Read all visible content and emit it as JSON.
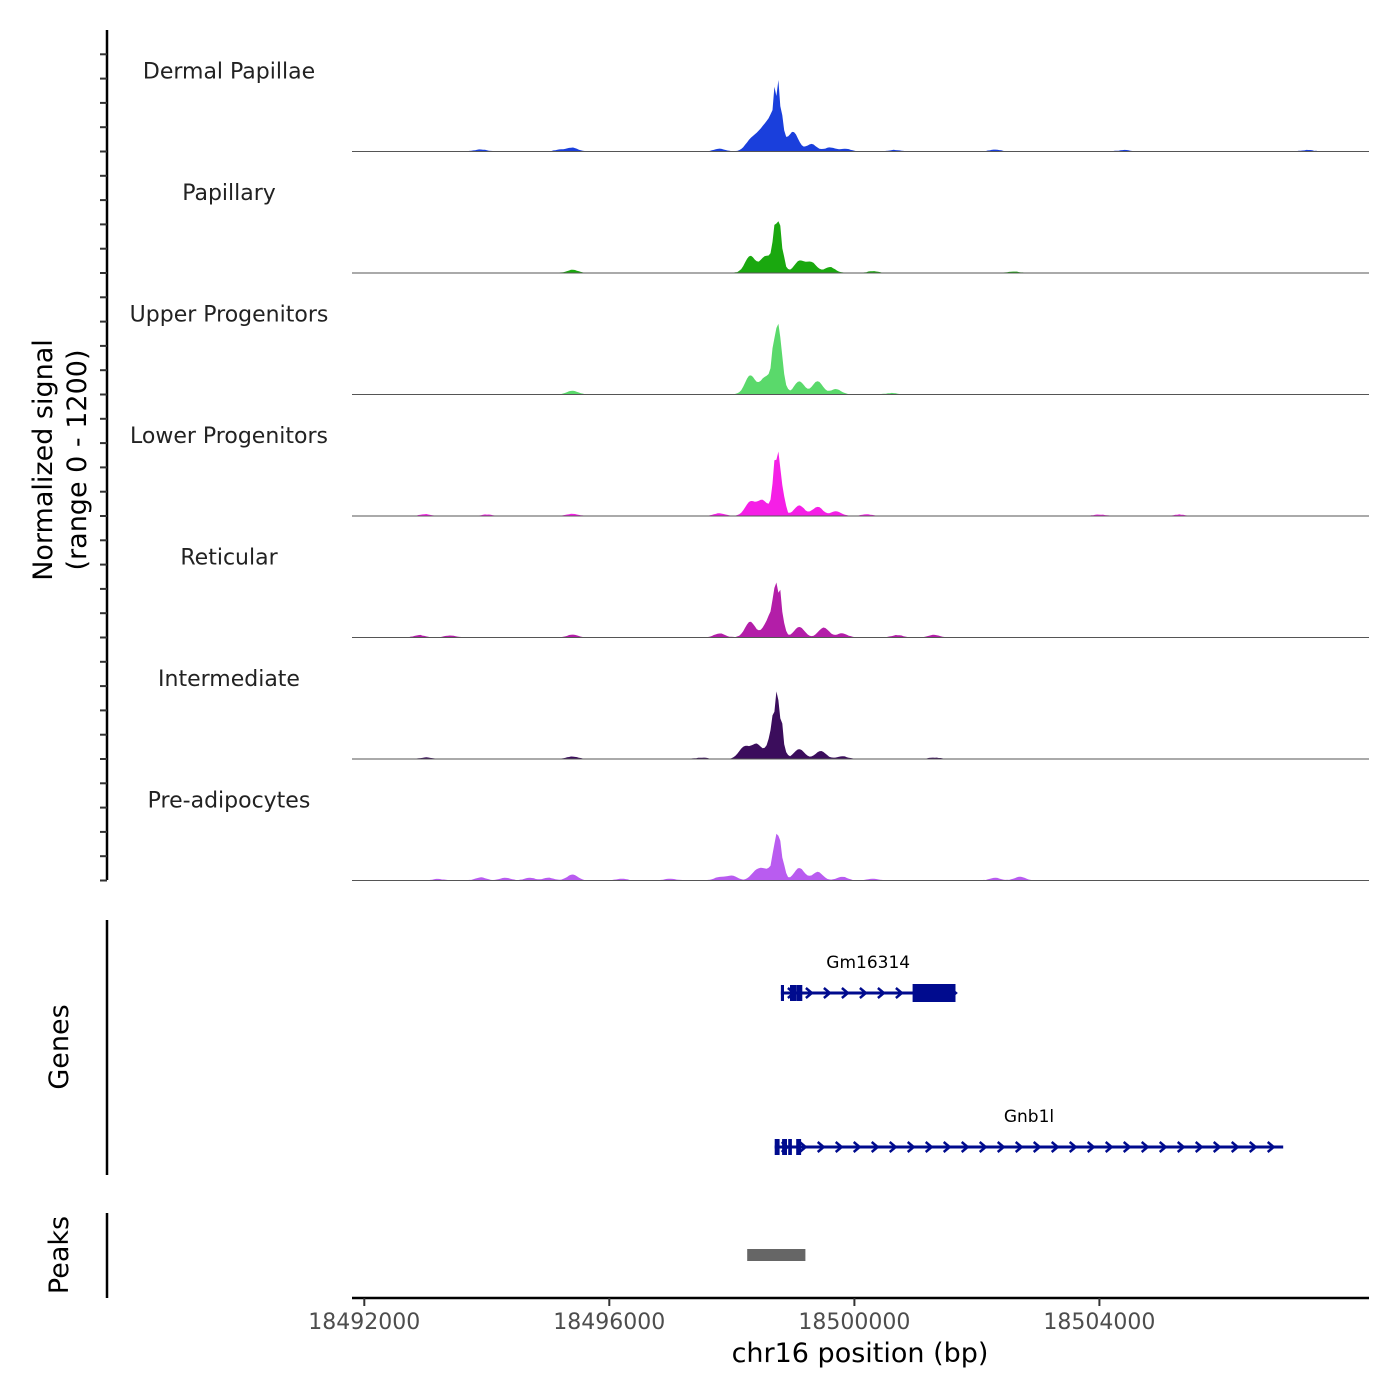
{
  "chart_data": {
    "type": "area",
    "title": "",
    "xlabel": "chr16 position (bp)",
    "ylabel_line1": "Normalized signal",
    "ylabel_line2": "(range 0 - 1200)",
    "yrange": [
      0,
      1200
    ],
    "xlim": [
      18491800,
      18508400
    ],
    "x_ticks": [
      18492000,
      18496000,
      18500000,
      18504000
    ],
    "x_tick_labels": [
      "18492000",
      "18496000",
      "18500000",
      "18504000"
    ],
    "genes_label": "Genes",
    "peaks_label": "Peaks",
    "tracks": [
      {
        "name": "Dermal Papillae",
        "color": "#1a3fdc",
        "peak": 1100,
        "bumps": [
          [
            18493900,
            30
          ],
          [
            18495200,
            25
          ],
          [
            18495400,
            55
          ],
          [
            18497800,
            40
          ],
          [
            18498300,
            150
          ],
          [
            18498450,
            220
          ],
          [
            18498600,
            380
          ],
          [
            18499000,
            300
          ],
          [
            18499300,
            110
          ],
          [
            18499600,
            60
          ],
          [
            18499850,
            40
          ],
          [
            18500650,
            22
          ],
          [
            18502300,
            28
          ],
          [
            18504400,
            20
          ],
          [
            18507400,
            20
          ]
        ]
      },
      {
        "name": "Papillary",
        "color": "#1aa80f",
        "peak": 970,
        "bumps": [
          [
            18495400,
            45
          ],
          [
            18498300,
            260
          ],
          [
            18498550,
            250
          ],
          [
            18499100,
            180
          ],
          [
            18499300,
            160
          ],
          [
            18499600,
            90
          ],
          [
            18500300,
            25
          ],
          [
            18502600,
            20
          ]
        ]
      },
      {
        "name": "Upper Progenitors",
        "color": "#5ad96b",
        "peak": 1500,
        "bumps": [
          [
            18495400,
            55
          ],
          [
            18498300,
            290
          ],
          [
            18498550,
            260
          ],
          [
            18499100,
            200
          ],
          [
            18499400,
            200
          ],
          [
            18499700,
            80
          ],
          [
            18500600,
            20
          ]
        ]
      },
      {
        "name": "Lower Progenitors",
        "color": "#f51fe6",
        "peak": 1200,
        "bumps": [
          [
            18493000,
            25
          ],
          [
            18494000,
            20
          ],
          [
            18495400,
            30
          ],
          [
            18497800,
            40
          ],
          [
            18498300,
            210
          ],
          [
            18498500,
            230
          ],
          [
            18499100,
            160
          ],
          [
            18499400,
            140
          ],
          [
            18499700,
            70
          ],
          [
            18500200,
            25
          ],
          [
            18504000,
            20
          ],
          [
            18505300,
            20
          ]
        ]
      },
      {
        "name": "Reticular",
        "color": "#b31ea8",
        "peak": 920,
        "bumps": [
          [
            18492900,
            35
          ],
          [
            18493400,
            28
          ],
          [
            18495400,
            40
          ],
          [
            18497800,
            60
          ],
          [
            18498300,
            240
          ],
          [
            18498600,
            260
          ],
          [
            18499100,
            160
          ],
          [
            18499500,
            150
          ],
          [
            18499800,
            60
          ],
          [
            18500700,
            35
          ],
          [
            18501300,
            40
          ]
        ]
      },
      {
        "name": "Intermediate",
        "color": "#3b0d5c",
        "peak": 960,
        "bumps": [
          [
            18493000,
            20
          ],
          [
            18495400,
            35
          ],
          [
            18497500,
            20
          ],
          [
            18498200,
            180
          ],
          [
            18498400,
            220
          ],
          [
            18498650,
            260
          ],
          [
            18499100,
            150
          ],
          [
            18499450,
            120
          ],
          [
            18499800,
            40
          ],
          [
            18501300,
            20
          ]
        ]
      },
      {
        "name": "Pre-adipocytes",
        "color": "#b95cf0",
        "peak": 900,
        "bumps": [
          [
            18493200,
            20
          ],
          [
            18493900,
            45
          ],
          [
            18494300,
            40
          ],
          [
            18494700,
            40
          ],
          [
            18495000,
            40
          ],
          [
            18495400,
            90
          ],
          [
            18496200,
            25
          ],
          [
            18497000,
            25
          ],
          [
            18497800,
            50
          ],
          [
            18498000,
            70
          ],
          [
            18498400,
            140
          ],
          [
            18498550,
            140
          ],
          [
            18499100,
            190
          ],
          [
            18499400,
            130
          ],
          [
            18499800,
            55
          ],
          [
            18500300,
            25
          ],
          [
            18502300,
            40
          ],
          [
            18502700,
            55
          ]
        ]
      }
    ],
    "genes": [
      {
        "name": "Gm16314",
        "start": 18498800,
        "end": 18501650,
        "strand": "+",
        "thick_exons": [
          [
            18500950,
            18501650
          ]
        ],
        "exons": [
          [
            18498800,
            18498850
          ],
          [
            18498950,
            18499050
          ],
          [
            18499050,
            18499150
          ]
        ]
      },
      {
        "name": "Gnb1l",
        "start": 18498700,
        "end": 18507000,
        "strand": "+",
        "thick_exons": [],
        "exons": [
          [
            18498700,
            18498780
          ],
          [
            18498820,
            18498900
          ],
          [
            18498920,
            18498980
          ],
          [
            18499050,
            18499130
          ]
        ]
      }
    ],
    "peaks": [
      {
        "start": 18498250,
        "end": 18499200
      }
    ]
  },
  "colors": {
    "gene": "#000b8e",
    "peak": "#666666",
    "axis": "#000000",
    "baseline": "#555555"
  }
}
